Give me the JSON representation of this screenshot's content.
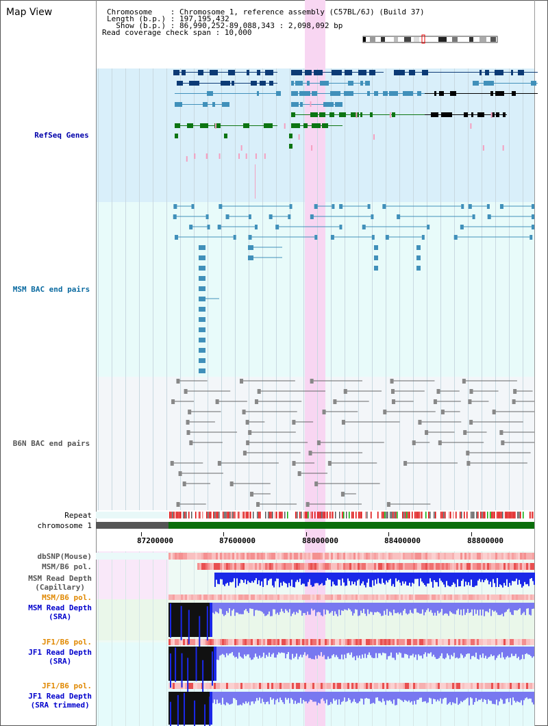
{
  "page": {
    "title": "Map View"
  },
  "info": {
    "line1": "Chromosome    : Chromosome 1, reference assembly (C57BL/6J) (Build 37)",
    "line2": "Length (b.p.) : 197,195,432",
    "line3": "  Show (b.p.) : 86,990,252-89,088,343 : 2,098,092 bp",
    "line4": "Read coverage check span : 10,000"
  },
  "tracks": {
    "refseq": "RefSeq Genes",
    "msm_bac": "MSM BAC end pairs",
    "b6n_bac": "B6N BAC end pairs",
    "repeat": "Repeat",
    "chromosome": "chromosome 1",
    "dbsnp": "dbSNP(Mouse)",
    "msm_b6_pol": "MSM/B6 pol.",
    "msm_depth_cap": "MSM Read Depth\n(Capillary)",
    "msm_b6_pol2": "MSM/B6 pol.",
    "msm_depth_sra": "MSM Read Depth\n(SRA)",
    "jf1_b6_pol": "JF1/B6 pol.",
    "jf1_depth_sra": "JF1 Read Depth\n(SRA)",
    "jf1_b6_pol2": "JF1/B6 pol.",
    "jf1_depth_trim": "JF1 Read Depth\n(SRA trimmed)"
  },
  "axis": {
    "ticks": [
      "87200000",
      "87600000",
      "88000000",
      "88400000",
      "88800000"
    ]
  },
  "colors": {
    "refseq_bg": "#d9effa",
    "bac_bg": "#e8fbfa",
    "b6n_bg": "#f3f6f9",
    "highlight": "#f8d6f2",
    "dark_gene": "#0c3a75",
    "mid_gene": "#4090ba",
    "green_gene": "#0c7512",
    "msm_label": "#0a6aa0",
    "b6n_label": "#555555",
    "refseq_label": "#0000aa",
    "pol_label": "#e08800",
    "depth_label": "#0000cc"
  }
}
